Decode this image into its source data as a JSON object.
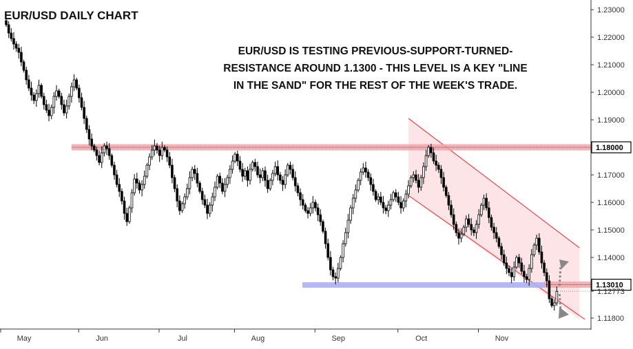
{
  "chart_data": {
    "type": "candlestick",
    "title": "EUR/USD DAILY CHART",
    "annotation": [
      "EUR/USD IS TESTING PREVIOUS-SUPPORT-TURNED-",
      "RESISTANCE AROUND 1.1300 - THIS LEVEL IS A KEY \"LINE",
      "IN THE SAND\" FOR THE REST OF THE WEEK'S TRADE."
    ],
    "y_ticks": [
      "1.23000",
      "1.22000",
      "1.21000",
      "1.20000",
      "1.19000",
      "1.18000",
      "1.17000",
      "1.16000",
      "1.15000",
      "1.14000",
      "1.13010",
      "1.12773",
      "1.11800"
    ],
    "ylim": [
      1.114,
      1.2325
    ],
    "x_ticks": [
      "May",
      "Jun",
      "Jul",
      "Aug",
      "Sep",
      "Oct",
      "Nov"
    ],
    "levels": {
      "resistance_high": {
        "value": 1.18,
        "label": "1.18000",
        "color": "#f4a3a8"
      },
      "resistance_low": {
        "value": 1.1301,
        "label": "1.13010",
        "color": "#f4a3a8"
      },
      "support_band": {
        "value": 1.13,
        "color": "#aab0f2"
      },
      "current_price": {
        "value": 1.12773,
        "label": "1.12773"
      }
    },
    "channel": {
      "upper": [
        [
          1.1905,
          160
        ],
        [
          1.1435,
          228
        ]
      ],
      "lower": [
        [
          1.1625,
          160
        ],
        [
          1.1175,
          228
        ]
      ],
      "fill": "#fde4e6",
      "line": "#e8464e"
    },
    "closes": [
      1.2245,
      1.2215,
      1.2195,
      1.2175,
      1.216,
      1.2145,
      1.211,
      1.208,
      1.2045,
      1.2015,
      1.199,
      1.197,
      1.1995,
      1.2025,
      1.1985,
      1.1955,
      1.1935,
      1.1915,
      1.1945,
      1.1985,
      1.2005,
      1.1985,
      1.1955,
      1.1925,
      1.195,
      1.1985,
      1.202,
      1.2045,
      1.2015,
      1.198,
      1.1945,
      1.1905,
      1.1865,
      1.183,
      1.1805,
      1.179,
      1.177,
      1.1745,
      1.178,
      1.1805,
      1.1795,
      1.177,
      1.1735,
      1.17,
      1.1665,
      1.164,
      1.1605,
      1.156,
      1.153,
      1.158,
      1.1635,
      1.1685,
      1.167,
      1.1645,
      1.1665,
      1.1695,
      1.1735,
      1.1765,
      1.179,
      1.1805,
      1.179,
      1.177,
      1.18,
      1.179,
      1.1765,
      1.1735,
      1.169,
      1.165,
      1.1605,
      1.157,
      1.1595,
      1.162,
      1.165,
      1.169,
      1.172,
      1.1705,
      1.167,
      1.164,
      1.161,
      1.159,
      1.156,
      1.159,
      1.162,
      1.1655,
      1.1695,
      1.167,
      1.164,
      1.1665,
      1.169,
      1.172,
      1.175,
      1.1775,
      1.175,
      1.172,
      1.1695,
      1.1715,
      1.168,
      1.172,
      1.1745,
      1.173,
      1.17,
      1.169,
      1.1715,
      1.168,
      1.165,
      1.168,
      1.1705,
      1.173,
      1.17,
      1.168,
      1.1665,
      1.17,
      1.1735,
      1.172,
      1.169,
      1.166,
      1.1635,
      1.161,
      1.159,
      1.157,
      1.156,
      1.158,
      1.16,
      1.158,
      1.1555,
      1.153,
      1.1495,
      1.145,
      1.14,
      1.1355,
      1.133,
      1.1325,
      1.136,
      1.14,
      1.145,
      1.149,
      1.1535,
      1.158,
      1.1615,
      1.1645,
      1.168,
      1.171,
      1.1725,
      1.171,
      1.169,
      1.1665,
      1.164,
      1.161,
      1.162,
      1.16,
      1.158,
      1.157,
      1.159,
      1.161,
      1.1635,
      1.162,
      1.16,
      1.158,
      1.1605,
      1.163,
      1.166,
      1.169,
      1.17,
      1.168,
      1.1655,
      1.169,
      1.173,
      1.177,
      1.18,
      1.178,
      1.175,
      1.1735,
      1.172,
      1.169,
      1.1655,
      1.1625,
      1.159,
      1.1555,
      1.152,
      1.149,
      1.147,
      1.1485,
      1.151,
      1.154,
      1.152,
      1.15,
      1.149,
      1.152,
      1.1555,
      1.159,
      1.1615,
      1.158,
      1.1545,
      1.151,
      1.149,
      1.147,
      1.144,
      1.141,
      1.138,
      1.136,
      1.1345,
      1.133,
      1.1365,
      1.14,
      1.138,
      1.135,
      1.133,
      1.132,
      1.136,
      1.141,
      1.1445,
      1.147,
      1.142,
      1.138,
      1.1345,
      1.1315,
      1.125,
      1.1225,
      1.1235,
      1.1277
    ]
  }
}
